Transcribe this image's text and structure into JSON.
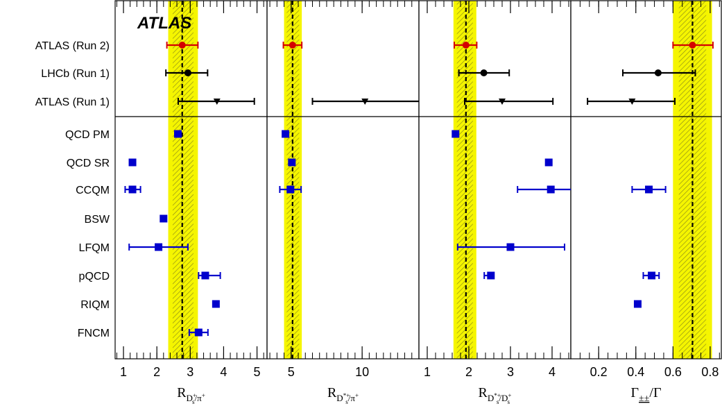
{
  "chart_data": {
    "type": "scatter",
    "watermark": "ATLAS",
    "rows": [
      "ATLAS (Run 2)",
      "LHCb (Run 1)",
      "ATLAS (Run 1)",
      "QCD PM",
      "QCD SR",
      "CCQM",
      "BSW",
      "LFQM",
      "pQCD",
      "RIQM",
      "FNCM"
    ],
    "colors": {
      "run2": "#d40000",
      "measurement": "#000000",
      "theory": "#0000cc",
      "band": "#f5f500"
    },
    "panels": [
      {
        "xlabel_main": "R",
        "xlabel_sub": "D",
        "xlabel_subsup": "+",
        "xlabel_subsub": "s",
        "xlabel_rest": "/π",
        "xlabel_restsup": "+",
        "xlim": [
          0.75,
          5.3
        ],
        "ticks": [
          "1",
          "2",
          "3",
          "4",
          "5"
        ],
        "tick_values": [
          1,
          2,
          3,
          4,
          5
        ],
        "minor_step": 0.2,
        "band": [
          2.34,
          3.23
        ],
        "band_center": 2.76,
        "points": [
          {
            "row": 0,
            "value": 2.76,
            "err_lo": 0.46,
            "err_hi": 0.47,
            "marker": "circle",
            "group": "run2"
          },
          {
            "row": 1,
            "value": 2.93,
            "err_lo": 0.66,
            "err_hi": 0.59,
            "marker": "circle",
            "group": "measurement"
          },
          {
            "row": 2,
            "value": 3.8,
            "err_lo": 1.16,
            "err_hi": 1.12,
            "marker": "triangle",
            "group": "measurement"
          },
          {
            "row": 3,
            "value": 2.63,
            "err_lo": 0,
            "err_hi": 0,
            "marker": "square",
            "group": "theory"
          },
          {
            "row": 4,
            "value": 1.27,
            "err_lo": 0,
            "err_hi": 0,
            "marker": "square",
            "group": "theory"
          },
          {
            "row": 5,
            "value": 1.27,
            "err_lo": 0.22,
            "err_hi": 0.24,
            "marker": "square",
            "group": "theory"
          },
          {
            "row": 6,
            "value": 2.2,
            "err_lo": 0,
            "err_hi": 0,
            "marker": "square",
            "group": "theory"
          },
          {
            "row": 7,
            "value": 2.05,
            "err_lo": 0.88,
            "err_hi": 0.88,
            "marker": "square",
            "group": "theory"
          },
          {
            "row": 8,
            "value": 3.45,
            "err_lo": 0.2,
            "err_hi": 0.45,
            "marker": "square",
            "group": "theory"
          },
          {
            "row": 9,
            "value": 3.77,
            "err_lo": 0,
            "err_hi": 0,
            "marker": "square",
            "group": "theory"
          },
          {
            "row": 10,
            "value": 3.25,
            "err_lo": 0.28,
            "err_hi": 0.28,
            "marker": "square",
            "group": "theory"
          }
        ]
      },
      {
        "xlabel_main": "R",
        "xlabel_sub": "D",
        "xlabel_subsup": "*+",
        "xlabel_subsub": "s",
        "xlabel_rest": "/π",
        "xlabel_restsup": "+",
        "xlim": [
          3.3,
          14.0
        ],
        "ticks": [
          "5",
          "10"
        ],
        "tick_values": [
          5,
          10
        ],
        "minor_step": 0.5,
        "band": [
          4.5,
          5.75
        ],
        "band_center": 5.1,
        "points": [
          {
            "row": 0,
            "value": 5.1,
            "err_lo": 0.65,
            "err_hi": 0.65,
            "marker": "circle",
            "group": "run2"
          },
          {
            "row": 2,
            "value": 10.2,
            "err_lo": 3.7,
            "err_hi": 4.0,
            "marker": "triangle",
            "group": "measurement"
          },
          {
            "row": 3,
            "value": 4.6,
            "err_lo": 0,
            "err_hi": 0,
            "marker": "square",
            "group": "theory"
          },
          {
            "row": 4,
            "value": 5.05,
            "err_lo": 0,
            "err_hi": 0,
            "marker": "square",
            "group": "theory"
          },
          {
            "row": 5,
            "value": 4.95,
            "err_lo": 0.75,
            "err_hi": 0.75,
            "marker": "square",
            "group": "theory"
          }
        ]
      },
      {
        "xlabel_main": "R",
        "xlabel_sub": "D",
        "xlabel_subsup": "*+",
        "xlabel_subsub": "s",
        "xlabel_rest": "/D",
        "xlabel_restsup": "+",
        "xlabel_restsub": "s",
        "xlim": [
          0.8,
          4.45
        ],
        "ticks": [
          "1",
          "2",
          "3",
          "4"
        ],
        "tick_values": [
          1,
          2,
          3,
          4
        ],
        "minor_step": 0.2,
        "band": [
          1.63,
          2.18
        ],
        "band_center": 1.93,
        "points": [
          {
            "row": 0,
            "value": 1.93,
            "err_lo": 0.28,
            "err_hi": 0.26,
            "marker": "circle",
            "group": "run2"
          },
          {
            "row": 1,
            "value": 2.36,
            "err_lo": 0.6,
            "err_hi": 0.61,
            "marker": "circle",
            "group": "measurement"
          },
          {
            "row": 2,
            "value": 2.8,
            "err_lo": 0.9,
            "err_hi": 1.22,
            "marker": "triangle",
            "group": "measurement"
          },
          {
            "row": 3,
            "value": 1.68,
            "err_lo": 0,
            "err_hi": 0,
            "marker": "square",
            "group": "theory"
          },
          {
            "row": 4,
            "value": 3.92,
            "err_lo": 0,
            "err_hi": 0,
            "marker": "square",
            "group": "theory"
          },
          {
            "row": 5,
            "value": 3.97,
            "err_lo": 0.8,
            "err_hi": 0.5,
            "marker": "square",
            "group": "theory"
          },
          {
            "row": 7,
            "value": 3.0,
            "err_lo": 1.27,
            "err_hi": 1.3,
            "marker": "square",
            "group": "theory"
          },
          {
            "row": 8,
            "value": 2.53,
            "err_lo": 0.16,
            "err_hi": 0,
            "marker": "square",
            "group": "theory"
          }
        ]
      },
      {
        "xlabel_greek": "Γ",
        "xlabel_sub": "±±",
        "xlabel_rest": "/Γ",
        "xlim": [
          0.05,
          0.86
        ],
        "ticks": [
          "0.2",
          "0.4",
          "0.6",
          "0.8"
        ],
        "tick_values": [
          0.2,
          0.4,
          0.6,
          0.8
        ],
        "minor_step": 0.05,
        "band": [
          0.6,
          0.81
        ],
        "band_center": 0.705,
        "points": [
          {
            "row": 0,
            "value": 0.705,
            "err_lo": 0.105,
            "err_hi": 0.11,
            "marker": "circle",
            "group": "run2"
          },
          {
            "row": 1,
            "value": 0.52,
            "err_lo": 0.19,
            "err_hi": 0.2,
            "marker": "circle",
            "group": "measurement"
          },
          {
            "row": 2,
            "value": 0.38,
            "err_lo": 0.24,
            "err_hi": 0.23,
            "marker": "triangle",
            "group": "measurement"
          },
          {
            "row": 5,
            "value": 0.47,
            "err_lo": 0.09,
            "err_hi": 0.09,
            "marker": "square",
            "group": "theory"
          },
          {
            "row": 8,
            "value": 0.485,
            "err_lo": 0.045,
            "err_hi": 0.04,
            "marker": "square",
            "group": "theory"
          },
          {
            "row": 9,
            "value": 0.41,
            "err_lo": 0,
            "err_hi": 0,
            "marker": "square",
            "group": "theory"
          }
        ]
      }
    ]
  }
}
